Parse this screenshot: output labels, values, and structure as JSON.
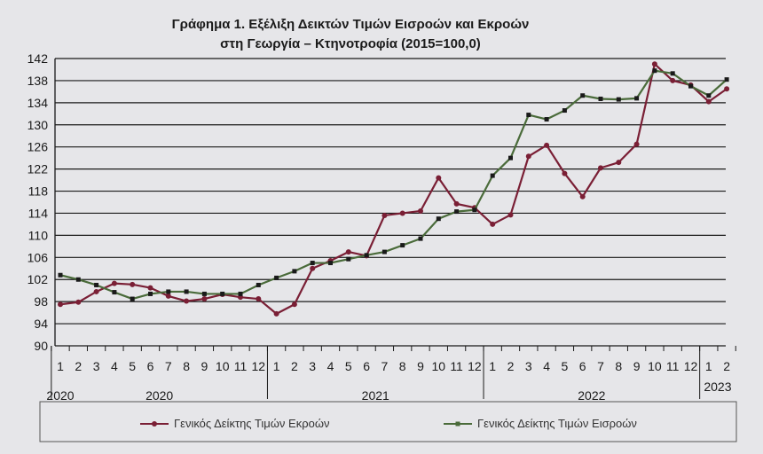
{
  "chart_data": {
    "type": "line",
    "title": "Γράφημα 1. Εξέλιξη Δεικτών Τιμών Εισροών και Εκροών",
    "subtitle": "στη Γεωργία – Κτηνοτροφία (2015=100,0)",
    "xlabel": "",
    "ylabel": "",
    "ylim": [
      90,
      142
    ],
    "yticks": [
      "142",
      "138",
      "134",
      "130",
      "126",
      "122",
      "118",
      "114",
      "110",
      "106",
      "102",
      "98",
      "94",
      "90"
    ],
    "categories": [
      "1",
      "2",
      "3",
      "4",
      "5",
      "6",
      "7",
      "8",
      "9",
      "10",
      "11",
      "12",
      "1",
      "2",
      "3",
      "4",
      "5",
      "6",
      "7",
      "8",
      "9",
      "10",
      "11",
      "12",
      "1",
      "2",
      "3",
      "4",
      "5",
      "6",
      "7",
      "8",
      "9",
      "10",
      "11",
      "12",
      "1",
      "2"
    ],
    "year_labels": [
      {
        "text": "2020",
        "start": 0,
        "end": 0
      },
      {
        "text": "2020",
        "start": 0,
        "end": 11
      },
      {
        "text": "2021",
        "start": 12,
        "end": 23
      },
      {
        "text": "2022",
        "start": 24,
        "end": 35
      },
      {
        "text": "2023",
        "start": 36,
        "end": 37
      }
    ],
    "grid": true,
    "legend_position": "bottom",
    "series": [
      {
        "name": "Γενικός Δείκτης Τιμών Εκροών",
        "color": "#7a1f35",
        "marker": "circle",
        "values": [
          97.5,
          97.9,
          99.8,
          101.3,
          101.1,
          100.5,
          99.0,
          98.1,
          98.5,
          99.3,
          98.8,
          98.5,
          95.8,
          97.5,
          104.0,
          105.4,
          107.0,
          106.3,
          113.6,
          114.0,
          114.4,
          120.4,
          115.7,
          115.0,
          112.0,
          113.7,
          124.3,
          126.3,
          121.2,
          117.0,
          122.2,
          123.2,
          126.5,
          141.0,
          138.0,
          137.2,
          134.2,
          136.5
        ]
      },
      {
        "name": "Γενικός Δείκτης Τιμών Εισροών",
        "color": "#4a6b3a",
        "marker": "square",
        "values": [
          102.8,
          102.0,
          101.0,
          99.7,
          98.5,
          99.4,
          99.8,
          99.8,
          99.4,
          99.4,
          99.4,
          101.0,
          102.3,
          103.5,
          105.0,
          105.0,
          105.7,
          106.4,
          107.0,
          108.2,
          109.4,
          113.0,
          114.3,
          114.6,
          120.8,
          124.0,
          131.8,
          131.0,
          132.6,
          135.3,
          134.7,
          134.6,
          134.8,
          139.8,
          139.3,
          137.0,
          135.3,
          138.2
        ]
      }
    ]
  }
}
